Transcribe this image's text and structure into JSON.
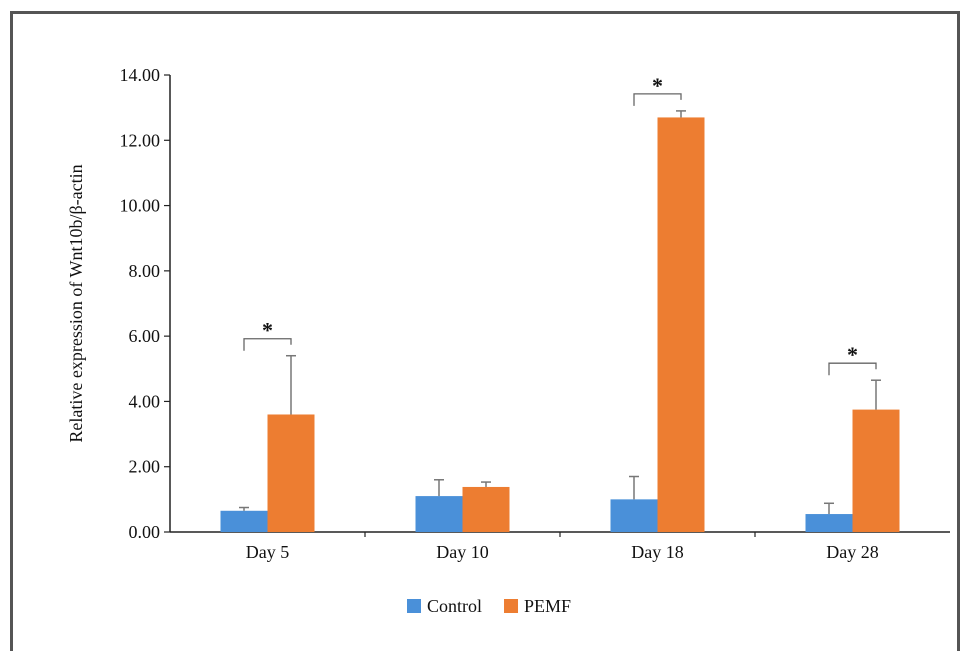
{
  "chart_data": {
    "type": "bar",
    "categories": [
      "Day 5",
      "Day 10",
      "Day 18",
      "Day 28"
    ],
    "series": [
      {
        "name": "Control",
        "color": "#4a90d9",
        "values": [
          0.65,
          1.1,
          1.0,
          0.55
        ],
        "errors": [
          0.1,
          0.5,
          0.7,
          0.33
        ]
      },
      {
        "name": "PEMF",
        "color": "#ed7d31",
        "values": [
          3.6,
          1.38,
          12.7,
          3.75
        ],
        "errors": [
          1.8,
          0.15,
          0.2,
          0.9
        ]
      }
    ],
    "ylabel": "Relative expression of Wnt10b/β-actin",
    "ylim": [
      0,
      14
    ],
    "yticks": [
      "0.00",
      "2.00",
      "4.00",
      "6.00",
      "8.00",
      "10.00",
      "12.00",
      "14.00"
    ],
    "significance": [
      "*",
      "",
      "*",
      "*"
    ],
    "legend_position": "bottom-center",
    "grid": false
  }
}
